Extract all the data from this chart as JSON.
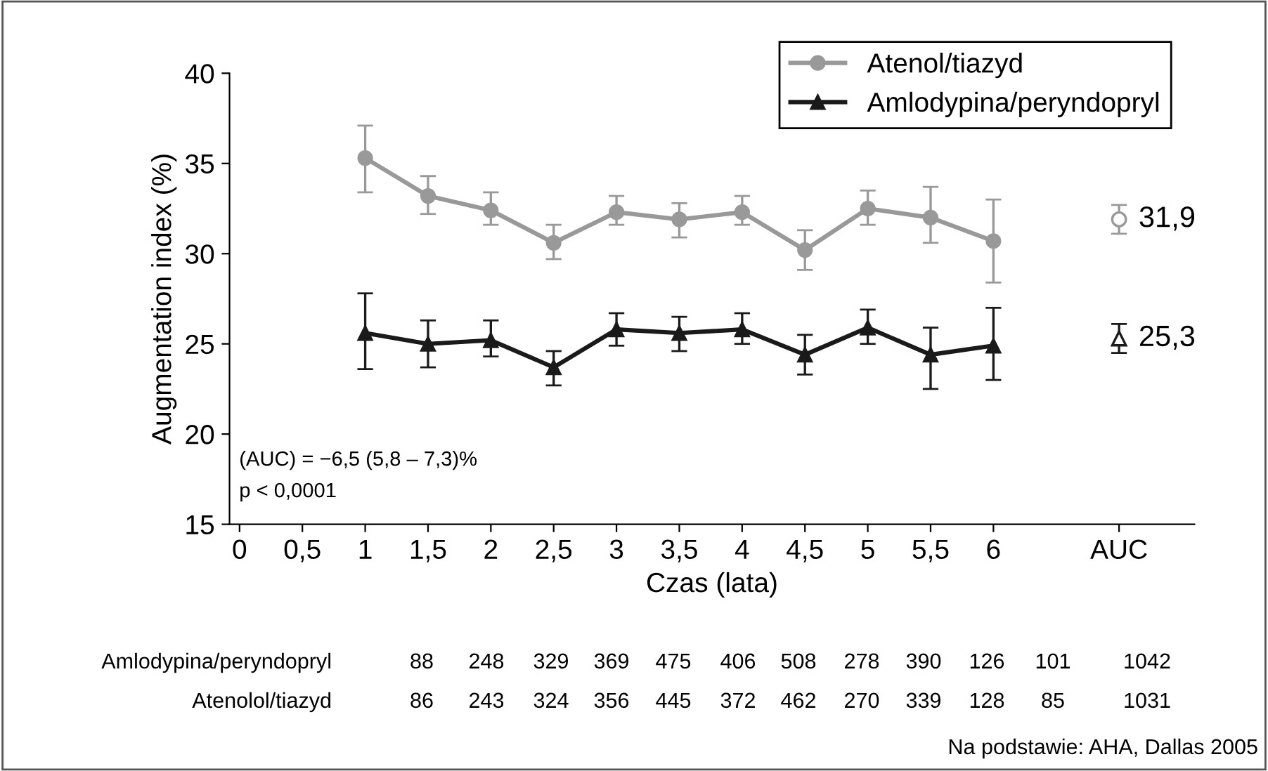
{
  "chart_data": {
    "type": "line",
    "xlabel": "Czas (lata)",
    "ylabel": "Augmentation index (%)",
    "xlim": [
      -0.08,
      7.6
    ],
    "ylim": [
      15,
      40
    ],
    "xticks": [
      {
        "value": 0,
        "label": "0"
      },
      {
        "value": 0.5,
        "label": "0,5"
      },
      {
        "value": 1,
        "label": "1"
      },
      {
        "value": 1.5,
        "label": "1,5"
      },
      {
        "value": 2,
        "label": "2"
      },
      {
        "value": 2.5,
        "label": "2,5"
      },
      {
        "value": 3,
        "label": "3"
      },
      {
        "value": 3.5,
        "label": "3,5"
      },
      {
        "value": 4,
        "label": "4"
      },
      {
        "value": 4.5,
        "label": "4,5"
      },
      {
        "value": 5,
        "label": "5"
      },
      {
        "value": 5.5,
        "label": "5,5"
      },
      {
        "value": 6,
        "label": "6"
      },
      {
        "value": 7,
        "label": "AUC"
      }
    ],
    "yticks": [
      15,
      20,
      25,
      30,
      35,
      40
    ],
    "grid": false,
    "legend": "top right",
    "line_style": "solid",
    "series": [
      {
        "name": "Atenol/tiazyd",
        "color": "#999999",
        "marker": "circle",
        "x": [
          1,
          1.5,
          2,
          2.5,
          3,
          3.5,
          4,
          4.5,
          5,
          5.5,
          6
        ],
        "values": [
          35.3,
          33.2,
          32.4,
          30.6,
          32.3,
          31.9,
          32.3,
          30.2,
          32.5,
          32.0,
          30.7
        ],
        "errors": [
          [
            33.4,
            37.1
          ],
          [
            32.2,
            34.3
          ],
          [
            31.6,
            33.4
          ],
          [
            29.7,
            31.6
          ],
          [
            31.6,
            33.2
          ],
          [
            30.9,
            32.8
          ],
          [
            31.6,
            33.2
          ],
          [
            29.1,
            31.3
          ],
          [
            31.6,
            33.5
          ],
          [
            30.6,
            33.7
          ],
          [
            28.4,
            33.0
          ]
        ]
      },
      {
        "name": "Amlodypina/peryndopryl",
        "color": "#1a1a1a",
        "marker": "triangle",
        "x": [
          1,
          1.5,
          2,
          2.5,
          3,
          3.5,
          4,
          4.5,
          5,
          5.5,
          6
        ],
        "values": [
          25.6,
          25.0,
          25.2,
          23.7,
          25.8,
          25.6,
          25.8,
          24.4,
          25.9,
          24.4,
          24.9
        ],
        "errors": [
          [
            23.6,
            27.8
          ],
          [
            23.7,
            26.3
          ],
          [
            24.3,
            26.3
          ],
          [
            22.7,
            24.6
          ],
          [
            24.9,
            26.7
          ],
          [
            24.6,
            26.5
          ],
          [
            25.0,
            26.7
          ],
          [
            23.3,
            25.5
          ],
          [
            25.0,
            26.9
          ],
          [
            22.5,
            25.9
          ],
          [
            23.0,
            27.0
          ]
        ]
      },
      {
        "type": "scatter",
        "color": "#999999",
        "marker": "circle",
        "x": [
          7
        ],
        "values": [
          31.9
        ],
        "errors": [
          0.8
        ],
        "value_labels": [
          "31,9"
        ]
      },
      {
        "type": "scatter",
        "color": "#1a1a1a",
        "marker": "triangle",
        "x": [
          7
        ],
        "values": [
          25.3
        ],
        "errors": [
          0.8
        ],
        "value_labels": [
          "25,3"
        ]
      }
    ],
    "annotations": [
      "(AUC) = −6,5 (5,8 – 7,3)%",
      "p < 0,0001",
      "Amlodypina/peryndopryl",
      "88",
      "248",
      "329",
      "369",
      "475",
      "406",
      "508",
      "278",
      "390",
      "126",
      "101",
      "1042",
      "Atenolol/tiazyd",
      "86",
      "243",
      "324",
      "356",
      "445",
      "372",
      "462",
      "270",
      "339",
      "128",
      "85",
      "1031",
      "Na podstawie: AHA, Dallas 2005"
    ]
  }
}
